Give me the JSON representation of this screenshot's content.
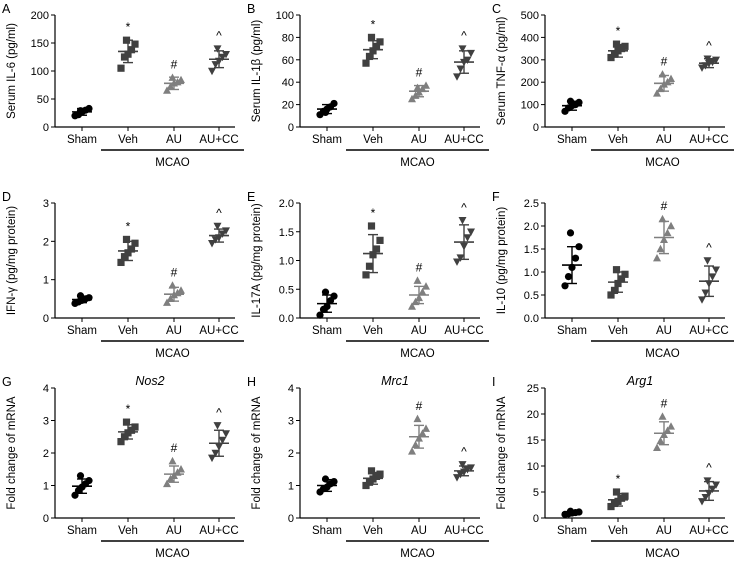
{
  "colors": {
    "sham": "#000000",
    "veh": "#404040",
    "au": "#7f7f7f",
    "aucc": "#404040"
  },
  "chart_data": [
    {
      "type": "scatter",
      "panel": "A",
      "title": "",
      "ylabel": "Serum IL-6 (pg/ml)",
      "ylim": [
        0,
        200
      ],
      "yticks": [
        "0",
        "50",
        "100",
        "150",
        "200"
      ],
      "ytick_values": [
        0,
        50,
        100,
        150,
        200
      ],
      "categories": [
        "Sham",
        "Veh",
        "AU",
        "AU+CC"
      ],
      "group_label": "MCAO",
      "markers": [
        "circle",
        "square",
        "triangle",
        "invtriangle"
      ],
      "means": [
        27,
        135,
        78,
        121
      ],
      "sds": [
        6,
        20,
        11,
        15
      ],
      "points": [
        [
          20,
          22,
          27,
          30,
          33,
          29
        ],
        [
          105,
          125,
          130,
          138,
          148,
          155
        ],
        [
          65,
          72,
          78,
          80,
          84,
          88
        ],
        [
          100,
          112,
          118,
          125,
          130,
          140
        ]
      ],
      "significance": [
        "",
        "*",
        "#",
        "^"
      ]
    },
    {
      "type": "scatter",
      "panel": "B",
      "title": "",
      "ylabel": "Serum IL-1β (pg/ml)",
      "ylim": [
        0,
        100
      ],
      "yticks": [
        "0",
        "20",
        "40",
        "60",
        "80",
        "100"
      ],
      "ytick_values": [
        0,
        20,
        40,
        60,
        80,
        100
      ],
      "categories": [
        "Sham",
        "Veh",
        "AU",
        "AU+CC"
      ],
      "group_label": "MCAO",
      "markers": [
        "circle",
        "square",
        "triangle",
        "invtriangle"
      ],
      "means": [
        16,
        69,
        32,
        58
      ],
      "sds": [
        4,
        8,
        5,
        10
      ],
      "points": [
        [
          11,
          14,
          16,
          18,
          21,
          13
        ],
        [
          57,
          63,
          68,
          72,
          76,
          80
        ],
        [
          25,
          28,
          31,
          34,
          37,
          35
        ],
        [
          45,
          52,
          58,
          60,
          66,
          70
        ]
      ],
      "significance": [
        "",
        "*",
        "#",
        "^"
      ]
    },
    {
      "type": "scatter",
      "panel": "C",
      "title": "",
      "ylabel": "Serum TNF-α (pg/ml)",
      "ylim": [
        0,
        500
      ],
      "yticks": [
        "0",
        "100",
        "200",
        "300",
        "400",
        "500"
      ],
      "ytick_values": [
        0,
        100,
        200,
        300,
        400,
        500
      ],
      "categories": [
        "Sham",
        "Veh",
        "AU",
        "AU+CC"
      ],
      "group_label": "MCAO",
      "markers": [
        "circle",
        "square",
        "triangle",
        "invtriangle"
      ],
      "means": [
        95,
        340,
        195,
        285
      ],
      "sds": [
        20,
        28,
        35,
        20
      ],
      "points": [
        [
          70,
          85,
          95,
          100,
          110,
          115
        ],
        [
          310,
          325,
          340,
          350,
          360,
          370
        ],
        [
          150,
          170,
          190,
          200,
          215,
          235
        ],
        [
          265,
          275,
          285,
          290,
          300,
          305
        ]
      ],
      "significance": [
        "",
        "*",
        "#",
        "^"
      ]
    },
    {
      "type": "scatter",
      "panel": "D",
      "title": "",
      "ylabel": "IFN-γ (pg/mg protein)",
      "ylim": [
        0,
        3
      ],
      "yticks": [
        "0",
        "1",
        "2",
        "3"
      ],
      "ytick_values": [
        0,
        1,
        2,
        3
      ],
      "categories": [
        "Sham",
        "Veh",
        "AU",
        "AU+CC"
      ],
      "group_label": "MCAO",
      "markers": [
        "circle",
        "square",
        "triangle",
        "invtriangle"
      ],
      "means": [
        0.48,
        1.75,
        0.62,
        2.15
      ],
      "sds": [
        0.08,
        0.25,
        0.18,
        0.17
      ],
      "points": [
        [
          0.38,
          0.42,
          0.46,
          0.5,
          0.53,
          0.58
        ],
        [
          1.45,
          1.6,
          1.7,
          1.8,
          1.95,
          2.05
        ],
        [
          0.4,
          0.5,
          0.6,
          0.65,
          0.72,
          0.85
        ],
        [
          1.95,
          2.05,
          2.1,
          2.2,
          2.28,
          2.4
        ]
      ],
      "significance": [
        "",
        "*",
        "#",
        "^"
      ]
    },
    {
      "type": "scatter",
      "panel": "E",
      "title": "",
      "ylabel": "IL-17A (pg/mg protein)",
      "ylim": [
        0,
        2
      ],
      "yticks": [
        "0.0",
        "0.5",
        "1.0",
        "1.5",
        "2.0"
      ],
      "ytick_values": [
        0,
        0.5,
        1.0,
        1.5,
        2.0
      ],
      "categories": [
        "Sham",
        "Veh",
        "AU",
        "AU+CC"
      ],
      "group_label": "MCAO",
      "markers": [
        "circle",
        "square",
        "triangle",
        "invtriangle"
      ],
      "means": [
        0.25,
        1.12,
        0.4,
        1.32
      ],
      "sds": [
        0.15,
        0.33,
        0.15,
        0.3
      ],
      "points": [
        [
          0.05,
          0.15,
          0.2,
          0.3,
          0.38,
          0.45
        ],
        [
          0.75,
          0.9,
          1.1,
          1.2,
          1.35,
          1.6
        ],
        [
          0.2,
          0.28,
          0.35,
          0.45,
          0.55,
          0.65
        ],
        [
          0.98,
          1.05,
          1.25,
          1.4,
          1.5,
          1.7
        ]
      ],
      "significance": [
        "",
        "*",
        "#",
        "^"
      ]
    },
    {
      "type": "scatter",
      "panel": "F",
      "title": "",
      "ylabel": "IL-10 (pg/mg protein)",
      "ylim": [
        0,
        2.5
      ],
      "yticks": [
        "0.0",
        "0.5",
        "1.0",
        "1.5",
        "2.0",
        "2.5"
      ],
      "ytick_values": [
        0,
        0.5,
        1.0,
        1.5,
        2.0,
        2.5
      ],
      "categories": [
        "Sham",
        "Veh",
        "AU",
        "AU+CC"
      ],
      "group_label": "MCAO",
      "markers": [
        "circle",
        "square",
        "triangle",
        "invtriangle"
      ],
      "means": [
        1.15,
        0.78,
        1.75,
        0.8
      ],
      "sds": [
        0.4,
        0.22,
        0.35,
        0.33
      ],
      "points": [
        [
          0.7,
          0.9,
          1.1,
          1.3,
          1.55,
          1.85
        ],
        [
          0.5,
          0.6,
          0.75,
          0.85,
          0.95,
          1.05
        ],
        [
          1.3,
          1.5,
          1.7,
          1.85,
          2.0,
          2.15
        ],
        [
          0.4,
          0.55,
          0.75,
          0.9,
          1.05,
          1.25
        ]
      ],
      "significance": [
        "",
        "",
        "#",
        "^"
      ]
    },
    {
      "type": "scatter",
      "panel": "G",
      "title": "Nos2",
      "ylabel": "Fold change of mRNA",
      "ylim": [
        0,
        4
      ],
      "yticks": [
        "0",
        "1",
        "2",
        "3",
        "4"
      ],
      "ytick_values": [
        0,
        1,
        2,
        3,
        4
      ],
      "categories": [
        "Sham",
        "Veh",
        "AU",
        "AU+CC"
      ],
      "group_label": "MCAO",
      "markers": [
        "circle",
        "square",
        "triangle",
        "invtriangle"
      ],
      "means": [
        0.98,
        2.65,
        1.35,
        2.3
      ],
      "sds": [
        0.22,
        0.22,
        0.25,
        0.4
      ],
      "points": [
        [
          0.7,
          0.85,
          0.95,
          1.05,
          1.15,
          1.3
        ],
        [
          2.35,
          2.5,
          2.62,
          2.7,
          2.8,
          2.95
        ],
        [
          1.05,
          1.2,
          1.3,
          1.4,
          1.5,
          1.75
        ],
        [
          1.85,
          2.0,
          2.2,
          2.4,
          2.6,
          2.85
        ]
      ],
      "significance": [
        "",
        "*",
        "#",
        "^"
      ]
    },
    {
      "type": "scatter",
      "panel": "H",
      "title": "Mrc1",
      "ylabel": "Fold change of mRNA",
      "ylim": [
        0,
        4
      ],
      "yticks": [
        "0",
        "1",
        "2",
        "3",
        "4"
      ],
      "ytick_values": [
        0,
        1,
        2,
        3,
        4
      ],
      "categories": [
        "Sham",
        "Veh",
        "AU",
        "AU+CC"
      ],
      "group_label": "MCAO",
      "markers": [
        "circle",
        "square",
        "triangle",
        "invtriangle"
      ],
      "means": [
        1.0,
        1.22,
        2.5,
        1.45
      ],
      "sds": [
        0.18,
        0.18,
        0.35,
        0.15
      ],
      "points": [
        [
          0.8,
          0.9,
          0.95,
          1.05,
          1.12,
          1.2
        ],
        [
          1.0,
          1.1,
          1.2,
          1.28,
          1.35,
          1.45
        ],
        [
          2.05,
          2.25,
          2.45,
          2.6,
          2.75,
          3.05
        ],
        [
          1.25,
          1.35,
          1.42,
          1.5,
          1.55,
          1.65
        ]
      ],
      "significance": [
        "",
        "",
        "#",
        "^"
      ]
    },
    {
      "type": "scatter",
      "panel": "I",
      "title": "Arg1",
      "ylabel": "Fold change of mRNA",
      "ylim": [
        0,
        25
      ],
      "yticks": [
        "0",
        "5",
        "10",
        "15",
        "20",
        "25"
      ],
      "ytick_values": [
        0,
        5,
        10,
        15,
        20,
        25
      ],
      "categories": [
        "Sham",
        "Veh",
        "AU",
        "AU+CC"
      ],
      "group_label": "MCAO",
      "markers": [
        "circle",
        "square",
        "triangle",
        "invtriangle"
      ],
      "means": [
        1.0,
        3.5,
        16.3,
        5.2
      ],
      "sds": [
        0.2,
        1.2,
        2.2,
        1.8
      ],
      "points": [
        [
          0.7,
          0.8,
          0.95,
          1.05,
          1.15,
          1.3
        ],
        [
          2.2,
          2.8,
          3.2,
          3.8,
          4.2,
          5.0
        ],
        [
          13.5,
          14.8,
          16,
          16.8,
          17.6,
          19.5
        ],
        [
          3.2,
          4.0,
          4.8,
          5.6,
          6.4,
          7.2
        ]
      ],
      "significance": [
        "",
        "*",
        "#",
        "^"
      ]
    }
  ]
}
